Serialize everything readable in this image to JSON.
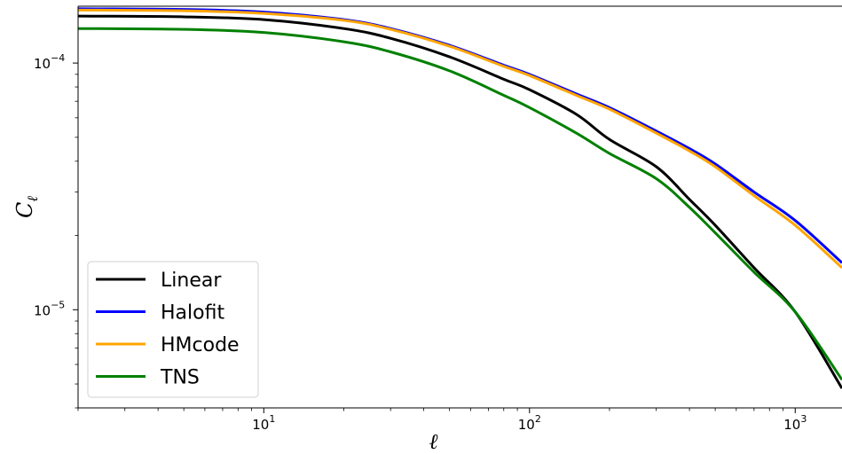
{
  "chart_data": {
    "type": "line",
    "xlabel": "ℓ",
    "ylabel": "C",
    "ylabel_subscript": "ℓ",
    "xscale": "log",
    "yscale": "log",
    "xlim": [
      2,
      1500
    ],
    "ylim": [
      4e-06,
      0.00017
    ],
    "x_ticks": [
      {
        "value": 10,
        "base": "10",
        "exp": "1"
      },
      {
        "value": 100,
        "base": "10",
        "exp": "2"
      },
      {
        "value": 1000,
        "base": "10",
        "exp": "3"
      }
    ],
    "y_ticks": [
      {
        "value": 0.0001,
        "base": "10",
        "exp": "−4"
      },
      {
        "value": 1e-05,
        "base": "10",
        "exp": "−5"
      }
    ],
    "grid": false,
    "legend_position": "lower-left",
    "series": [
      {
        "name": "Linear",
        "color": "#000000",
        "x": [
          2,
          5,
          10,
          20,
          30,
          50,
          80,
          100,
          150,
          200,
          300,
          400,
          500,
          700,
          1000,
          1500
        ],
        "y": [
          0.000155,
          0.000154,
          0.00015,
          0.000138,
          0.000126,
          0.000106,
          8.6e-05,
          7.8e-05,
          6.2e-05,
          4.9e-05,
          3.8e-05,
          2.8e-05,
          2.2e-05,
          1.48e-05,
          9.8e-06,
          4.8e-06
        ]
      },
      {
        "name": "Halofit",
        "color": "#0000ff",
        "x": [
          2,
          5,
          10,
          20,
          30,
          50,
          80,
          100,
          150,
          200,
          300,
          400,
          500,
          700,
          1000,
          1500
        ],
        "y": [
          0.000166,
          0.000165,
          0.000161,
          0.00015,
          0.000138,
          0.000118,
          9.8e-05,
          9e-05,
          7.5e-05,
          6.6e-05,
          5.3e-05,
          4.5e-05,
          3.9e-05,
          3e-05,
          2.3e-05,
          1.55e-05
        ]
      },
      {
        "name": "HMcode",
        "color": "#ffa500",
        "x": [
          2,
          5,
          10,
          20,
          30,
          50,
          80,
          100,
          150,
          200,
          300,
          400,
          500,
          700,
          1000,
          1500
        ],
        "y": [
          0.000164,
          0.000163,
          0.000159,
          0.000149,
          0.000137,
          0.000117,
          9.7e-05,
          8.9e-05,
          7.4e-05,
          6.5e-05,
          5.2e-05,
          4.4e-05,
          3.8e-05,
          2.9e-05,
          2.2e-05,
          1.48e-05
        ]
      },
      {
        "name": "TNS",
        "color": "#008000",
        "x": [
          2,
          5,
          10,
          20,
          30,
          50,
          80,
          100,
          150,
          200,
          300,
          400,
          500,
          700,
          1000,
          1500
        ],
        "y": [
          0.000138,
          0.000137,
          0.000133,
          0.000122,
          0.000111,
          9.3e-05,
          7.4e-05,
          6.6e-05,
          5.2e-05,
          4.3e-05,
          3.4e-05,
          2.6e-05,
          2.05e-05,
          1.42e-05,
          9.8e-06,
          5.2e-06
        ]
      }
    ]
  }
}
